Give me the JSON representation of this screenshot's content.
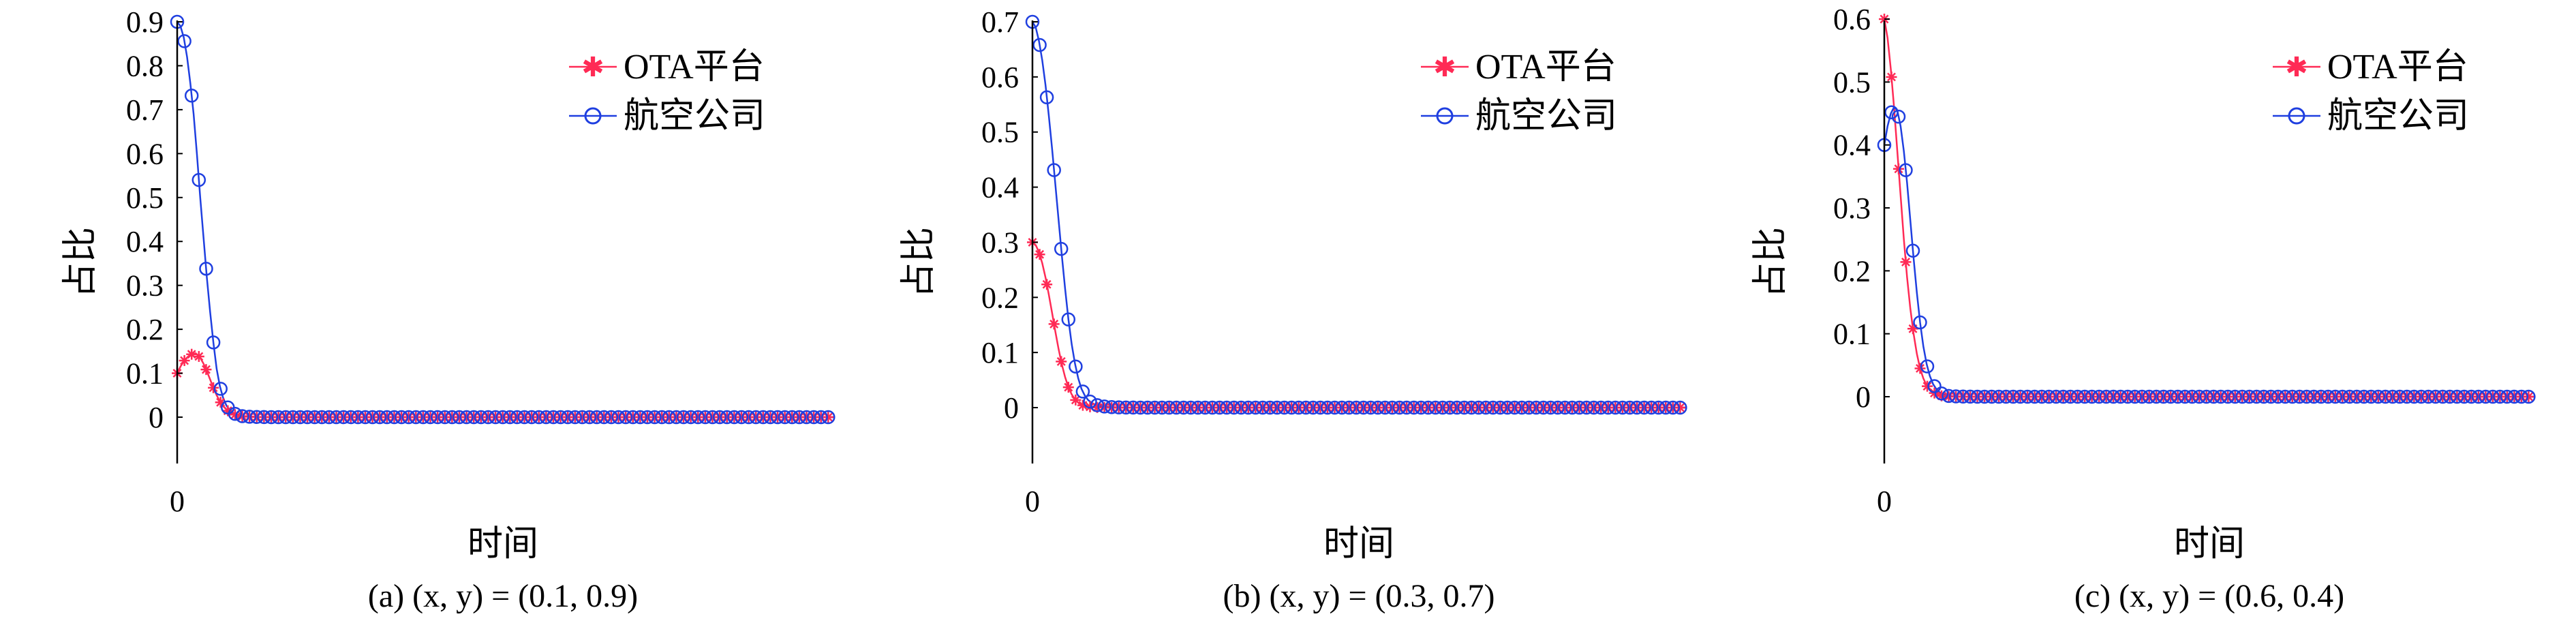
{
  "chart_data": [
    {
      "type": "line",
      "caption": "(a) (x, y) = (0.1, 0.9)",
      "xlabel": "时间",
      "ylabel": "占比",
      "yticks": [
        "0",
        "0.1",
        "0.2",
        "0.3",
        "0.4",
        "0.5",
        "0.6",
        "0.7",
        "0.8",
        "0.9"
      ],
      "xticks": [
        "0"
      ],
      "ylim": [
        0,
        0.9
      ],
      "legend_position": "top-right",
      "series": [
        {
          "name": "OTA平台",
          "color": "#ff2a55",
          "marker": "star",
          "x": [
            0,
            1,
            2,
            3,
            4,
            5,
            6,
            7,
            8,
            9,
            10,
            11,
            12,
            13,
            14,
            15,
            16,
            17,
            18,
            19,
            20,
            22,
            24,
            26,
            28,
            30,
            35,
            40,
            50,
            60,
            70,
            80,
            90,
            100,
            110,
            120,
            130,
            140,
            150,
            160,
            170,
            180,
            190,
            200
          ],
          "y": [
            0.1,
            0.115,
            0.127,
            0.136,
            0.142,
            0.145,
            0.143,
            0.135,
            0.122,
            0.105,
            0.086,
            0.067,
            0.05,
            0.036,
            0.025,
            0.017,
            0.011,
            0.007,
            0.005,
            0.003,
            0.002,
            0.001,
            0.0005,
            0.0002,
            0.0001,
            0,
            0,
            0,
            0,
            0,
            0,
            0,
            0,
            0,
            0,
            0,
            0,
            0,
            0,
            0,
            0,
            0,
            0,
            0
          ]
        },
        {
          "name": "航空公司",
          "color": "#1f3fe0",
          "marker": "circle",
          "x": [
            0,
            1,
            2,
            3,
            4,
            5,
            6,
            7,
            8,
            9,
            10,
            11,
            12,
            13,
            14,
            15,
            16,
            17,
            18,
            19,
            20,
            22,
            24,
            26,
            28,
            30,
            35,
            40,
            50,
            60,
            70,
            80,
            90,
            100,
            110,
            120,
            130,
            140,
            150,
            160,
            170,
            180,
            190,
            200
          ],
          "y": [
            0.9,
            0.89,
            0.865,
            0.82,
            0.76,
            0.69,
            0.6,
            0.5,
            0.41,
            0.32,
            0.24,
            0.17,
            0.11,
            0.07,
            0.043,
            0.026,
            0.016,
            0.01,
            0.006,
            0.004,
            0.002,
            0.001,
            0.0005,
            0.0002,
            0.0001,
            0,
            0,
            0,
            0,
            0,
            0,
            0,
            0,
            0,
            0,
            0,
            0,
            0,
            0,
            0,
            0,
            0,
            0,
            0
          ]
        }
      ]
    },
    {
      "type": "line",
      "caption": "(b) (x, y) = (0.3, 0.7)",
      "xlabel": "时间",
      "ylabel": "占比",
      "yticks": [
        "0",
        "0.1",
        "0.2",
        "0.3",
        "0.4",
        "0.5",
        "0.6",
        "0.7"
      ],
      "xticks": [
        "0"
      ],
      "ylim": [
        0,
        0.7
      ],
      "legend_position": "top-right",
      "series": [
        {
          "name": "OTA平台",
          "color": "#ff2a55",
          "marker": "star",
          "x": [
            0,
            1,
            2,
            3,
            4,
            5,
            6,
            7,
            8,
            9,
            10,
            11,
            12,
            13,
            14,
            15,
            16,
            17,
            18,
            19,
            20,
            22,
            24,
            26,
            28,
            30,
            35,
            40,
            50,
            60,
            70,
            80,
            90,
            100,
            110,
            120,
            130,
            140,
            150,
            160,
            170,
            180,
            190,
            200
          ],
          "y": [
            0.3,
            0.295,
            0.282,
            0.262,
            0.236,
            0.205,
            0.172,
            0.138,
            0.106,
            0.078,
            0.055,
            0.037,
            0.024,
            0.015,
            0.009,
            0.005,
            0.003,
            0.002,
            0.001,
            0.0005,
            0.0002,
            0.0001,
            0,
            0,
            0,
            0,
            0,
            0,
            0,
            0,
            0,
            0,
            0,
            0,
            0,
            0,
            0,
            0,
            0,
            0,
            0,
            0,
            0,
            0
          ]
        },
        {
          "name": "航空公司",
          "color": "#1f3fe0",
          "marker": "circle",
          "x": [
            0,
            1,
            2,
            3,
            4,
            5,
            6,
            7,
            8,
            9,
            10,
            11,
            12,
            13,
            14,
            15,
            16,
            17,
            18,
            19,
            20,
            22,
            24,
            26,
            28,
            30,
            35,
            40,
            50,
            60,
            70,
            80,
            90,
            100,
            110,
            120,
            130,
            140,
            150,
            160,
            170,
            180,
            190,
            200
          ],
          "y": [
            0.7,
            0.69,
            0.665,
            0.63,
            0.585,
            0.53,
            0.47,
            0.405,
            0.34,
            0.275,
            0.215,
            0.16,
            0.115,
            0.08,
            0.053,
            0.034,
            0.022,
            0.014,
            0.009,
            0.006,
            0.004,
            0.002,
            0.001,
            0.0005,
            0.0002,
            0.0001,
            0,
            0,
            0,
            0,
            0,
            0,
            0,
            0,
            0,
            0,
            0,
            0,
            0,
            0,
            0,
            0,
            0,
            0
          ]
        }
      ]
    },
    {
      "type": "line",
      "caption": "(c) (x, y) = (0.6, 0.4)",
      "xlabel": "时间",
      "ylabel": "占比",
      "yticks": [
        "0",
        "0.1",
        "0.2",
        "0.3",
        "0.4",
        "0.5",
        "0.6"
      ],
      "xticks": [
        "0"
      ],
      "ylim": [
        0,
        0.6
      ],
      "legend_position": "top-right",
      "series": [
        {
          "name": "OTA平台",
          "color": "#ff2a55",
          "marker": "star",
          "x": [
            0,
            1,
            2,
            3,
            4,
            5,
            6,
            7,
            8,
            9,
            10,
            11,
            12,
            13,
            14,
            15,
            16,
            17,
            18,
            19,
            20,
            22,
            24,
            26,
            28,
            30,
            35,
            40,
            50,
            60,
            70,
            80,
            90,
            100,
            110,
            120,
            130,
            140,
            150,
            160,
            170,
            180,
            190,
            200
          ],
          "y": [
            0.6,
            0.57,
            0.52,
            0.46,
            0.39,
            0.32,
            0.25,
            0.19,
            0.14,
            0.1,
            0.068,
            0.045,
            0.029,
            0.018,
            0.011,
            0.007,
            0.004,
            0.002,
            0.001,
            0.0005,
            0.0002,
            0.0001,
            0,
            0,
            0,
            0,
            0,
            0,
            0,
            0,
            0,
            0,
            0,
            0,
            0,
            0,
            0,
            0,
            0,
            0,
            0,
            0,
            0,
            0
          ]
        },
        {
          "name": "航空公司",
          "color": "#1f3fe0",
          "marker": "circle",
          "x": [
            0,
            1,
            2,
            3,
            4,
            5,
            6,
            7,
            8,
            9,
            10,
            11,
            12,
            13,
            14,
            15,
            16,
            17,
            18,
            19,
            20,
            22,
            24,
            26,
            28,
            30,
            35,
            40,
            50,
            60,
            70,
            80,
            90,
            100,
            110,
            120,
            130,
            140,
            150,
            160,
            170,
            180,
            190,
            200
          ],
          "y": [
            0.4,
            0.43,
            0.45,
            0.46,
            0.455,
            0.43,
            0.39,
            0.34,
            0.28,
            0.22,
            0.165,
            0.118,
            0.08,
            0.052,
            0.033,
            0.02,
            0.012,
            0.007,
            0.004,
            0.002,
            0.001,
            0.0005,
            0.0002,
            0.0001,
            0,
            0,
            0,
            0,
            0,
            0,
            0,
            0,
            0,
            0,
            0,
            0,
            0,
            0,
            0,
            0,
            0,
            0,
            0,
            0
          ]
        }
      ]
    }
  ]
}
